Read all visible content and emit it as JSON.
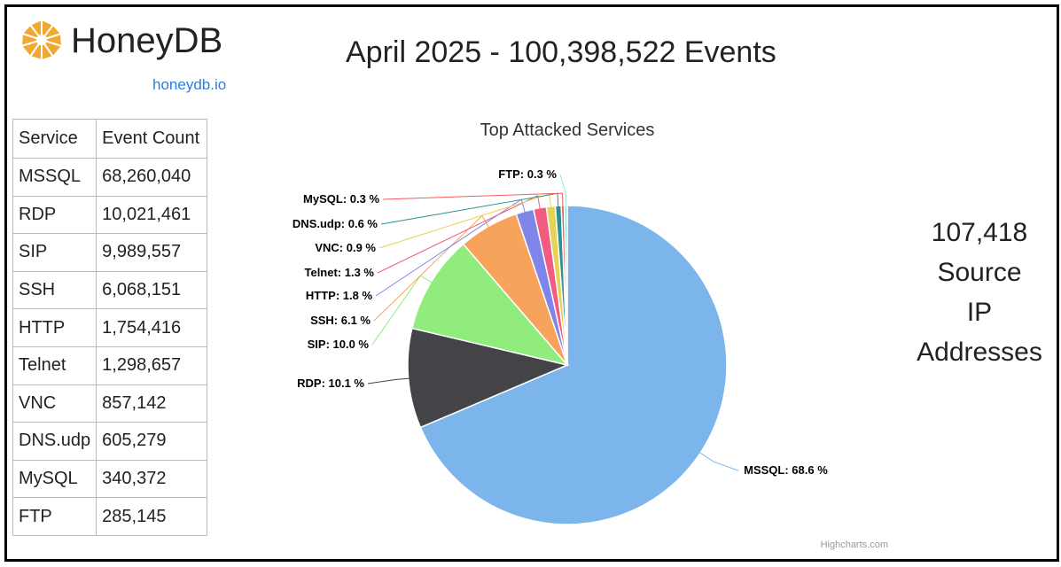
{
  "header": {
    "brand": "HoneyDB",
    "brand_link": "honeydb.io",
    "headline": "April 2025 - 100,398,522 Events"
  },
  "table": {
    "headers": [
      "Service",
      "Event Count"
    ],
    "rows": [
      [
        "MSSQL",
        "68,260,040"
      ],
      [
        "RDP",
        "10,021,461"
      ],
      [
        "SIP",
        "9,989,557"
      ],
      [
        "SSH",
        "6,068,151"
      ],
      [
        "HTTP",
        "1,754,416"
      ],
      [
        "Telnet",
        "1,298,657"
      ],
      [
        "VNC",
        "857,142"
      ],
      [
        "DNS.udp",
        "605,279"
      ],
      [
        "MySQL",
        "340,372"
      ],
      [
        "FTP",
        "285,145"
      ]
    ]
  },
  "ip_box": {
    "lines": [
      "107,418",
      "Source",
      "IP",
      "Addresses"
    ]
  },
  "credit": "Highcharts.com",
  "chart_data": {
    "type": "pie",
    "title": "Top Attacked Services",
    "categories": [
      "MSSQL",
      "RDP",
      "SIP",
      "SSH",
      "HTTP",
      "Telnet",
      "VNC",
      "DNS.udp",
      "MySQL",
      "FTP"
    ],
    "values": [
      68.6,
      10.1,
      10.0,
      6.1,
      1.8,
      1.3,
      0.9,
      0.6,
      0.3,
      0.3
    ],
    "labels": [
      "MSSQL: 68.6 %",
      "RDP: 10.1 %",
      "SIP: 10.0 %",
      "SSH: 6.1 %",
      "HTTP: 1.8 %",
      "Telnet: 1.3 %",
      "VNC: 0.9 %",
      "DNS.udp: 0.6 %",
      "MySQL: 0.3 %",
      "FTP: 0.3 %"
    ],
    "colors": [
      "#7cb5ec",
      "#434348",
      "#90ed7d",
      "#f7a35c",
      "#8085e9",
      "#f15c80",
      "#e4d354",
      "#2b908f",
      "#f45b5b",
      "#91e8e1"
    ]
  }
}
